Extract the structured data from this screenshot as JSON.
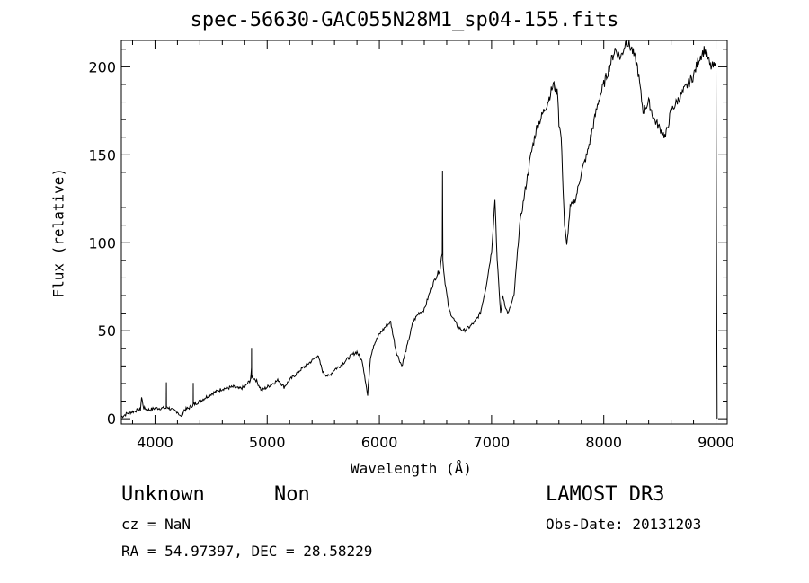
{
  "chart_data": {
    "type": "line",
    "title": "spec-56630-GAC055N28M1_sp04-155.fits",
    "xlabel": "Wavelength (Å)",
    "ylabel": "Flux (relative)",
    "xlim": [
      3700,
      9100
    ],
    "ylim": [
      -3,
      215
    ],
    "x_ticks": [
      4000,
      5000,
      6000,
      7000,
      8000,
      9000
    ],
    "y_ticks": [
      0,
      50,
      100,
      150,
      200
    ],
    "grid": false,
    "series": [
      {
        "x": [
          3700,
          3750,
          3800,
          3850,
          3870,
          3880,
          3900,
          3950,
          4000,
          4050,
          4100,
          4101,
          4102,
          4150,
          4200,
          4230,
          4260,
          4300,
          4340,
          4341,
          4342,
          4400,
          4500,
          4600,
          4700,
          4750,
          4800,
          4850,
          4860,
          4861,
          4862,
          4900,
          4950,
          5000,
          5050,
          5100,
          5150,
          5200,
          5250,
          5300,
          5400,
          5450,
          5500,
          5550,
          5600,
          5650,
          5700,
          5750,
          5800,
          5850,
          5880,
          5895,
          5920,
          5950,
          6000,
          6050,
          6100,
          6150,
          6200,
          6250,
          6300,
          6350,
          6400,
          6450,
          6500,
          6540,
          6560,
          6563,
          6566,
          6580,
          6620,
          6650,
          6700,
          6750,
          6800,
          6850,
          6900,
          6950,
          7000,
          7030,
          7050,
          7080,
          7100,
          7130,
          7150,
          7200,
          7250,
          7300,
          7350,
          7400,
          7500,
          7550,
          7590,
          7600,
          7620,
          7650,
          7670,
          7700,
          7750,
          7800,
          7850,
          7900,
          7950,
          8000,
          8050,
          8100,
          8150,
          8200,
          8250,
          8300,
          8350,
          8400,
          8450,
          8500,
          8550,
          8600,
          8650,
          8700,
          8750,
          8800,
          8850,
          8900,
          8950,
          9000,
          9010
        ],
        "y": [
          1,
          3,
          4,
          5,
          5,
          12,
          6,
          5,
          6,
          6,
          6,
          20,
          7,
          5,
          4,
          1,
          5,
          6,
          8,
          20,
          8,
          10,
          14,
          17,
          18,
          17,
          18,
          22,
          28,
          40,
          24,
          22,
          16,
          18,
          20,
          22,
          18,
          22,
          25,
          28,
          33,
          36,
          26,
          24,
          28,
          30,
          33,
          36,
          38,
          32,
          20,
          13,
          35,
          42,
          48,
          52,
          55,
          38,
          30,
          42,
          55,
          60,
          62,
          72,
          80,
          85,
          95,
          142,
          90,
          80,
          62,
          58,
          52,
          50,
          52,
          55,
          60,
          75,
          95,
          125,
          90,
          60,
          70,
          62,
          60,
          70,
          110,
          130,
          150,
          165,
          180,
          190,
          185,
          168,
          160,
          110,
          98,
          120,
          125,
          140,
          150,
          165,
          180,
          190,
          200,
          210,
          205,
          215,
          210,
          200,
          175,
          180,
          170,
          165,
          160,
          175,
          180,
          185,
          190,
          195,
          205,
          210,
          200,
          200,
          0
        ]
      }
    ]
  },
  "annotations": {
    "object_class": "Unknown",
    "subclass": "Non",
    "survey": "LAMOST DR3",
    "redshift": "cz = NaN",
    "obs_date": "Obs-Date: 20131203",
    "coords": "RA =  54.97397, DEC =  28.58229"
  }
}
